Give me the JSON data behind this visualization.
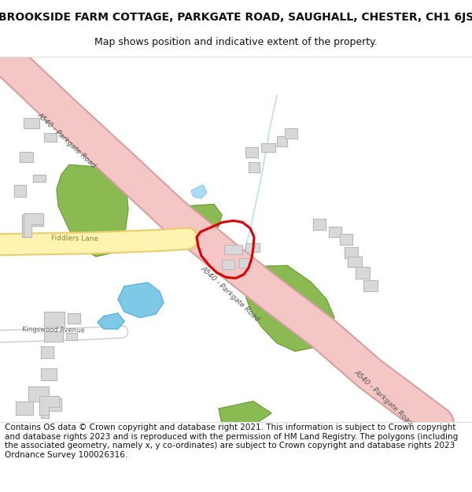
{
  "title_line1": "BROOKSIDE FARM COTTAGE, PARKGATE ROAD, SAUGHALL, CHESTER, CH1 6JS",
  "title_line2": "Map shows position and indicative extent of the property.",
  "footer_text": "Contains OS data © Crown copyright and database right 2021. This information is subject to Crown copyright and database rights 2023 and is reproduced with the permission of HM Land Registry. The polygons (including the associated geometry, namely x, y co-ordinates) are subject to Crown copyright and database rights 2023 Ordnance Survey 100026316.",
  "bg_color": "#ffffff",
  "road_pink": "#f5c6c6",
  "road_pink_border": "#d4a0a0",
  "road_yellow": "#fef3b0",
  "road_yellow_border": "#e8cc70",
  "green_color": "#8bba52",
  "green_dark": "#5a9030",
  "blue_color": "#7ec8e8",
  "building_color": "#d8d8d8",
  "building_outline": "#aaaaaa",
  "red_outline": "#dd0000",
  "title_fontsize": 10,
  "subtitle_fontsize": 9,
  "footer_fontsize": 7.5
}
